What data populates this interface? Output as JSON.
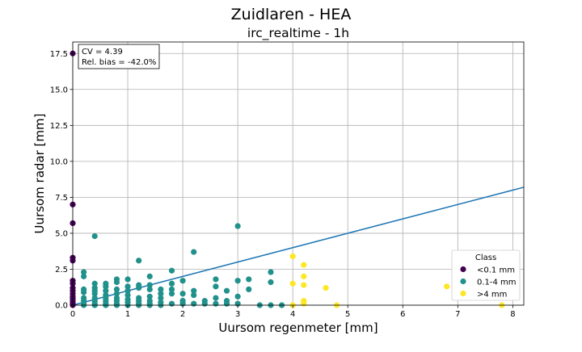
{
  "chart_data": {
    "type": "scatter",
    "suptitle": "Zuidlaren - HEA",
    "title": "irc_realtime - 1h",
    "xlabel": "Uursom regenmeter [mm]",
    "ylabel": "Uursom radar [mm]",
    "xlim": [
      0,
      8.2
    ],
    "ylim": [
      0,
      18.3
    ],
    "xticks": [
      "0",
      "1",
      "2",
      "3",
      "4",
      "5",
      "6",
      "7",
      "8"
    ],
    "yticks": [
      "0.0",
      "2.5",
      "5.0",
      "7.5",
      "10.0",
      "12.5",
      "15.0",
      "17.5"
    ],
    "grid": true,
    "stats": {
      "cv": "CV = 4.39",
      "bias": "Rel. bias = -42.0%"
    },
    "legend": {
      "title": "Class",
      "position": "lower-right",
      "entries": [
        {
          "label": "<0.1 mm",
          "color": "#440154"
        },
        {
          "label": "0.1-4 mm",
          "color": "#21918c"
        },
        {
          "label": ">4 mm",
          "color": "#fde725"
        }
      ]
    },
    "fit_line": {
      "color": "#1f77b4",
      "x": [
        0,
        8.2
      ],
      "y": [
        0,
        8.2
      ]
    },
    "series": [
      {
        "name": "<0.1 mm",
        "color": "#440154",
        "points": [
          [
            0,
            17.5
          ],
          [
            0,
            7.0
          ],
          [
            0,
            5.7
          ],
          [
            0,
            3.3
          ],
          [
            0,
            3.1
          ],
          [
            0,
            1.7
          ],
          [
            0,
            1.5
          ],
          [
            0,
            1.2
          ],
          [
            0,
            1.0
          ],
          [
            0,
            0.8
          ],
          [
            0,
            0.6
          ],
          [
            0,
            0.5
          ],
          [
            0,
            0.35
          ],
          [
            0,
            0.2
          ],
          [
            0,
            0.1
          ],
          [
            0,
            0.05
          ],
          [
            0,
            0.0
          ]
        ]
      },
      {
        "name": "0.1-4 mm",
        "color": "#21918c",
        "points": [
          [
            0.2,
            2.3
          ],
          [
            0.2,
            2.0
          ],
          [
            0.2,
            1.1
          ],
          [
            0.2,
            0.9
          ],
          [
            0.2,
            0.5
          ],
          [
            0.2,
            0.3
          ],
          [
            0.2,
            0.1
          ],
          [
            0.2,
            0.0
          ],
          [
            0.4,
            4.8
          ],
          [
            0.4,
            1.5
          ],
          [
            0.4,
            1.2
          ],
          [
            0.4,
            1.0
          ],
          [
            0.4,
            0.8
          ],
          [
            0.4,
            0.5
          ],
          [
            0.4,
            0.3
          ],
          [
            0.4,
            0.1
          ],
          [
            0.4,
            0.0
          ],
          [
            0.6,
            1.5
          ],
          [
            0.6,
            1.3
          ],
          [
            0.6,
            1.0
          ],
          [
            0.6,
            0.7
          ],
          [
            0.6,
            0.5
          ],
          [
            0.6,
            0.3
          ],
          [
            0.6,
            0.1
          ],
          [
            0.6,
            0.0
          ],
          [
            0.8,
            1.8
          ],
          [
            0.8,
            1.6
          ],
          [
            0.8,
            1.1
          ],
          [
            0.8,
            0.8
          ],
          [
            0.8,
            0.5
          ],
          [
            0.8,
            0.3
          ],
          [
            0.8,
            0.1
          ],
          [
            0.8,
            0.0
          ],
          [
            1.0,
            1.8
          ],
          [
            1.0,
            1.3
          ],
          [
            1.0,
            1.0
          ],
          [
            1.0,
            0.7
          ],
          [
            1.0,
            0.4
          ],
          [
            1.0,
            0.2
          ],
          [
            1.0,
            0.0
          ],
          [
            1.2,
            3.1
          ],
          [
            1.2,
            1.4
          ],
          [
            1.2,
            1.2
          ],
          [
            1.2,
            0.5
          ],
          [
            1.2,
            0.3
          ],
          [
            1.2,
            0.1
          ],
          [
            1.2,
            0.0
          ],
          [
            1.4,
            2.0
          ],
          [
            1.4,
            1.4
          ],
          [
            1.4,
            1.1
          ],
          [
            1.4,
            0.6
          ],
          [
            1.4,
            0.3
          ],
          [
            1.4,
            0.1
          ],
          [
            1.4,
            0.0
          ],
          [
            1.6,
            1.1
          ],
          [
            1.6,
            0.8
          ],
          [
            1.6,
            0.5
          ],
          [
            1.6,
            0.2
          ],
          [
            1.6,
            0.0
          ],
          [
            1.8,
            2.4
          ],
          [
            1.8,
            1.5
          ],
          [
            1.8,
            1.1
          ],
          [
            1.8,
            0.8
          ],
          [
            1.8,
            0.1
          ],
          [
            2.0,
            1.7
          ],
          [
            2.0,
            0.8
          ],
          [
            2.0,
            0.3
          ],
          [
            2.0,
            0.1
          ],
          [
            2.2,
            3.7
          ],
          [
            2.2,
            1.0
          ],
          [
            2.2,
            0.7
          ],
          [
            2.2,
            0.1
          ],
          [
            2.4,
            0.3
          ],
          [
            2.4,
            0.1
          ],
          [
            2.6,
            1.8
          ],
          [
            2.6,
            1.3
          ],
          [
            2.6,
            0.5
          ],
          [
            2.6,
            0.1
          ],
          [
            2.8,
            1.0
          ],
          [
            2.8,
            0.3
          ],
          [
            2.8,
            0.1
          ],
          [
            3.0,
            5.5
          ],
          [
            3.0,
            1.7
          ],
          [
            3.0,
            0.6
          ],
          [
            3.0,
            0.1
          ],
          [
            3.2,
            1.8
          ],
          [
            3.2,
            1.1
          ],
          [
            3.4,
            0.0
          ],
          [
            3.6,
            2.3
          ],
          [
            3.6,
            1.6
          ],
          [
            3.6,
            0.0
          ],
          [
            3.8,
            0.0
          ]
        ]
      },
      {
        "name": ">4 mm",
        "color": "#fde725",
        "points": [
          [
            4.0,
            3.4
          ],
          [
            4.0,
            1.5
          ],
          [
            4.0,
            0.0
          ],
          [
            4.2,
            2.8
          ],
          [
            4.2,
            2.0
          ],
          [
            4.2,
            1.4
          ],
          [
            4.2,
            0.3
          ],
          [
            4.2,
            0.1
          ],
          [
            4.6,
            1.2
          ],
          [
            4.8,
            0.0
          ],
          [
            6.8,
            1.3
          ],
          [
            7.8,
            0.0
          ]
        ]
      }
    ]
  }
}
